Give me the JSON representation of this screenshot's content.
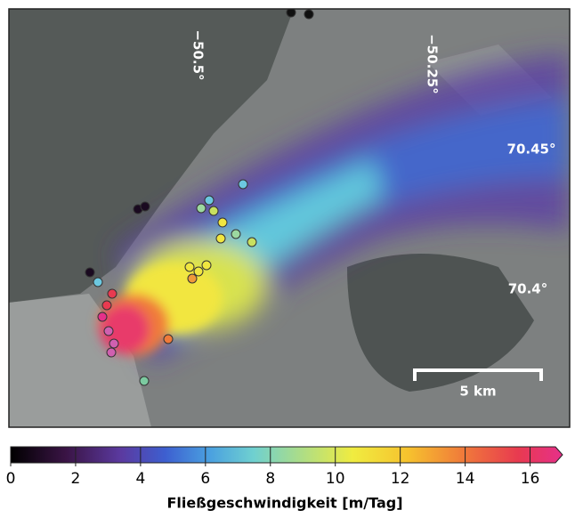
{
  "map": {
    "lon_labels": [
      "−50.5°",
      "−50.25°"
    ],
    "lat_labels": [
      "70.45°",
      "70.4°"
    ],
    "scale_bar": "5 km"
  },
  "colorbar": {
    "label": "Fließgeschwindigkeit [m/Tag]",
    "lim": [
      0,
      17
    ],
    "ticks": [
      0,
      2,
      4,
      6,
      8,
      10,
      12,
      14,
      16
    ]
  }
}
